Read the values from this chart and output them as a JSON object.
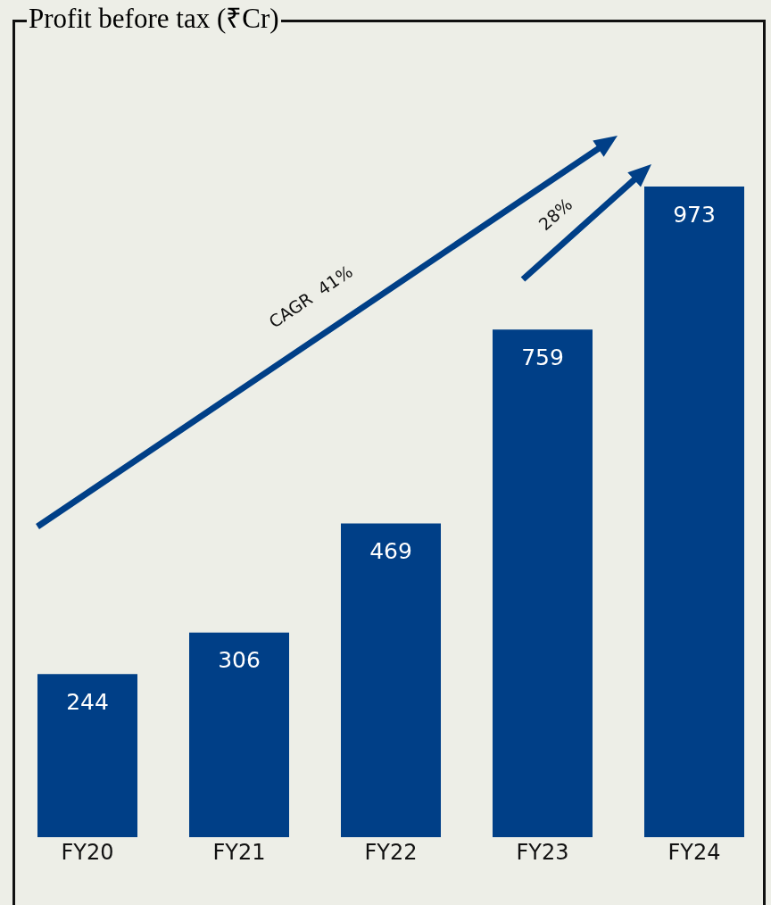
{
  "chart_data": {
    "type": "bar",
    "title": "Profit before tax (₹Cr)",
    "categories": [
      "FY20",
      "FY21",
      "FY22",
      "FY23",
      "FY24"
    ],
    "values": [
      244,
      306,
      469,
      759,
      973
    ],
    "color": "#003f87",
    "data_labels": true,
    "annotations": [
      "CAGR  41%",
      "28%"
    ]
  }
}
